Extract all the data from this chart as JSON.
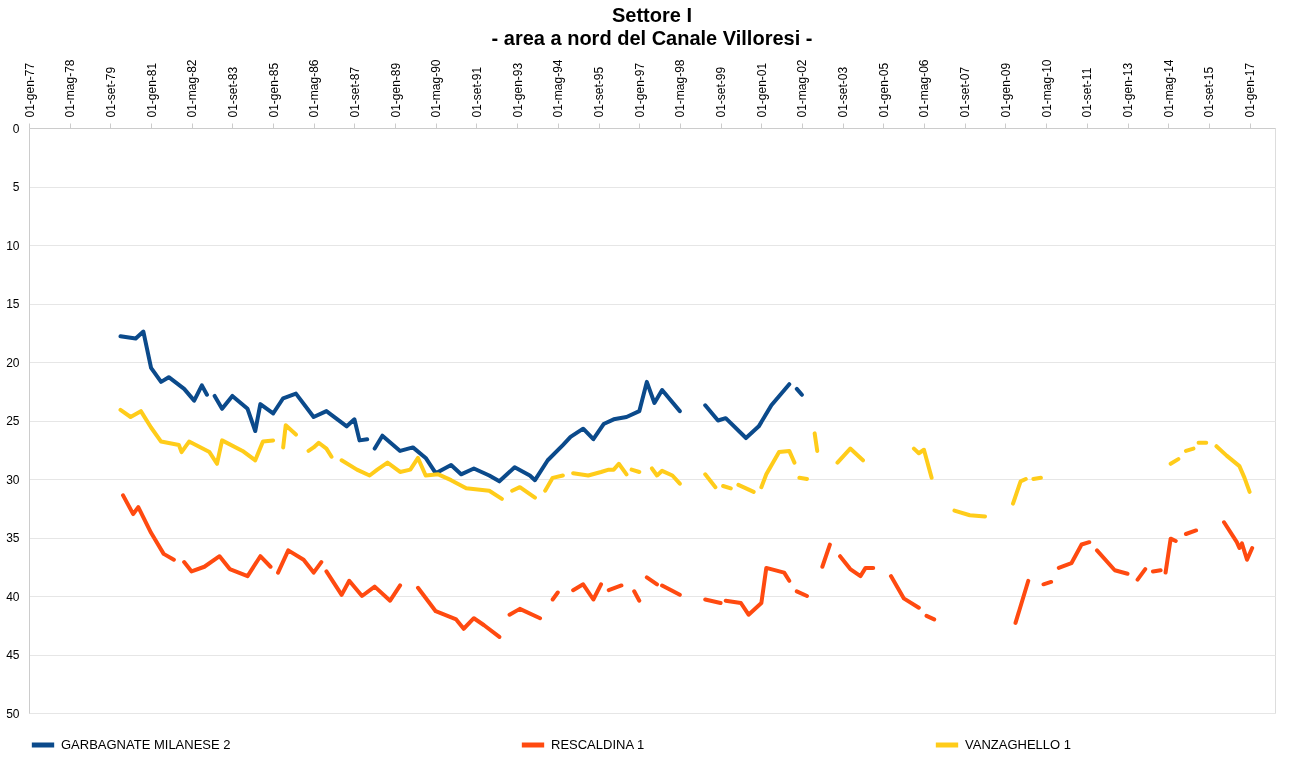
{
  "chart_data": {
    "type": "line",
    "title": "Settore I",
    "subtitle": "- area a nord del Canale Villoresi -",
    "xlim": [
      "1977-01",
      "2017-11"
    ],
    "xticks": [
      {
        "value": "1977-01",
        "label": "01-gen-77"
      },
      {
        "value": "1978-05",
        "label": "01-mag-78"
      },
      {
        "value": "1979-09",
        "label": "01-set-79"
      },
      {
        "value": "1981-01",
        "label": "01-gen-81"
      },
      {
        "value": "1982-05",
        "label": "01-mag-82"
      },
      {
        "value": "1983-09",
        "label": "01-set-83"
      },
      {
        "value": "1985-01",
        "label": "01-gen-85"
      },
      {
        "value": "1986-05",
        "label": "01-mag-86"
      },
      {
        "value": "1987-09",
        "label": "01-set-87"
      },
      {
        "value": "1989-01",
        "label": "01-gen-89"
      },
      {
        "value": "1990-05",
        "label": "01-mag-90"
      },
      {
        "value": "1991-09",
        "label": "01-set-91"
      },
      {
        "value": "1993-01",
        "label": "01-gen-93"
      },
      {
        "value": "1994-05",
        "label": "01-mag-94"
      },
      {
        "value": "1995-09",
        "label": "01-set-95"
      },
      {
        "value": "1997-01",
        "label": "01-gen-97"
      },
      {
        "value": "1998-05",
        "label": "01-mag-98"
      },
      {
        "value": "1999-09",
        "label": "01-set-99"
      },
      {
        "value": "2001-01",
        "label": "01-gen-01"
      },
      {
        "value": "2002-05",
        "label": "01-mag-02"
      },
      {
        "value": "2003-09",
        "label": "01-set-03"
      },
      {
        "value": "2005-01",
        "label": "01-gen-05"
      },
      {
        "value": "2006-05",
        "label": "01-mag-06"
      },
      {
        "value": "2007-09",
        "label": "01-set-07"
      },
      {
        "value": "2009-01",
        "label": "01-gen-09"
      },
      {
        "value": "2010-05",
        "label": "01-mag-10"
      },
      {
        "value": "2011-09",
        "label": "01-set-11"
      },
      {
        "value": "2013-01",
        "label": "01-gen-13"
      },
      {
        "value": "2014-05",
        "label": "01-mag-14"
      },
      {
        "value": "2015-09",
        "label": "01-set-15"
      },
      {
        "value": "2017-01",
        "label": "01-gen-17"
      }
    ],
    "ylim": [
      50,
      0
    ],
    "yticks": [
      0,
      5,
      10,
      15,
      20,
      25,
      30,
      35,
      40,
      45,
      50
    ],
    "grid": "y",
    "legend": "bottom",
    "line_style": "solid",
    "marker": "none",
    "series": [
      {
        "name": "GARBAGNATE MILANESE 2",
        "color": "#0b4a8b",
        "x": [
          "1980-01",
          "1980-07",
          "1980-10",
          "1981-01",
          "1981-05",
          "1981-08",
          "1982-02",
          "1982-06",
          "1982-09",
          "1982-11",
          "1982-12",
          "1983-02",
          "1983-05",
          "1983-09",
          "1984-03",
          "1984-06",
          "1984-08",
          "1985-01",
          "1985-05",
          "1985-10",
          "1986-05",
          "1986-10",
          "1987-06",
          "1987-09",
          "1987-11",
          "1988-02",
          "1988-04",
          "1988-05",
          "1988-08",
          "1989-03",
          "1989-08",
          "1990-01",
          "1990-05",
          "1990-11",
          "1991-03",
          "1991-08",
          "1992-02",
          "1992-06",
          "1992-12",
          "1993-06",
          "1993-08",
          "1994-01",
          "1994-07",
          "1994-10",
          "1995-03",
          "1995-07",
          "1995-11",
          "1996-03",
          "1996-08",
          "1997-01",
          "1997-04",
          "1997-07",
          "1997-10",
          "1998-05",
          "1998-10",
          "1999-03",
          "1999-08",
          "1999-11",
          "2000-07",
          "2000-12",
          "2001-05",
          "2001-12",
          "2002-02",
          "2002-03",
          "2002-05"
        ],
        "values": [
          17.8,
          18.0,
          17.4,
          20.5,
          21.7,
          21.3,
          22.3,
          23.3,
          22.0,
          22.8,
          null,
          22.9,
          24.0,
          22.9,
          24.0,
          25.9,
          23.6,
          24.4,
          23.1,
          22.7,
          24.7,
          24.2,
          25.5,
          24.9,
          26.7,
          26.6,
          null,
          27.4,
          26.3,
          27.6,
          27.3,
          28.2,
          29.5,
          28.8,
          29.6,
          29.1,
          29.7,
          30.2,
          29.0,
          29.7,
          30.1,
          28.4,
          27.1,
          26.4,
          25.7,
          26.6,
          25.3,
          24.9,
          24.7,
          24.2,
          21.7,
          23.5,
          22.4,
          24.2,
          null,
          23.7,
          25.0,
          24.8,
          26.5,
          25.5,
          23.7,
          21.9,
          null,
          22.3,
          22.8
        ]
      },
      {
        "name": "RESCALDINA 1",
        "color": "#ff4a10",
        "x": [
          "1980-02",
          "1980-06",
          "1980-08",
          "1981-01",
          "1981-06",
          "1981-10",
          "1981-12",
          "1982-02",
          "1982-05",
          "1982-10",
          "1983-04",
          "1983-08",
          "1984-03",
          "1984-08",
          "1984-12",
          "1985-01",
          "1985-03",
          "1985-07",
          "1986-01",
          "1986-05",
          "1986-08",
          "1986-09",
          "1986-10",
          "1987-04",
          "1987-07",
          "1987-12",
          "1988-05",
          "1988-11",
          "1989-03",
          "1989-06",
          "1989-10",
          "1990-05",
          "1991-01",
          "1991-04",
          "1991-08",
          "1991-12",
          "1992-06",
          "1992-08",
          "1992-10",
          "1993-02",
          "1993-10",
          "1994-01",
          "1994-03",
          "1994-05",
          "1994-08",
          "1994-11",
          "1995-03",
          "1995-07",
          "1995-10",
          "1995-12",
          "1996-01",
          "1996-06",
          "1996-08",
          "1996-11",
          "1997-01",
          "1997-02",
          "1997-04",
          "1997-08",
          "1997-09",
          "1997-10",
          "1998-05",
          "1998-10",
          "1999-03",
          "1999-09",
          "1999-10",
          "1999-11",
          "2000-05",
          "2000-08",
          "2001-01",
          "2001-03",
          "2001-10",
          "2001-12",
          "2002-02",
          "2002-03",
          "2002-07",
          "2002-08",
          "2003-01",
          "2003-04",
          "2003-06",
          "2003-08",
          "2003-12",
          "2004-04",
          "2004-06",
          "2004-09",
          "2005-01",
          "2005-04",
          "2005-09",
          "2006-03",
          "2006-04",
          "2006-06",
          "2006-09",
          "2007-12",
          "2009-05",
          "2009-10",
          "2010-01",
          "2010-04",
          "2010-07",
          "2010-08",
          "2010-10",
          "2011-03",
          "2011-07",
          "2011-10",
          "2011-11",
          "2012-01",
          "2012-08",
          "2013-01",
          "2013-03",
          "2013-05",
          "2013-08",
          "2013-09",
          "2013-11",
          "2014-02",
          "2014-03",
          "2014-04",
          "2014-06",
          "2014-08",
          "2014-10",
          "2014-12",
          "2015-04",
          "2015-08",
          "2016-03",
          "2016-08",
          "2016-09",
          "2016-10",
          "2016-12",
          "2017-02"
        ],
        "values": [
          31.4,
          33.0,
          32.4,
          34.6,
          36.4,
          36.9,
          null,
          37.1,
          37.9,
          37.5,
          36.6,
          37.7,
          38.3,
          36.6,
          37.5,
          null,
          38.0,
          36.1,
          36.9,
          38.0,
          37.1,
          null,
          37.9,
          39.9,
          38.7,
          40.0,
          39.2,
          40.4,
          39.1,
          null,
          39.3,
          41.3,
          42.0,
          42.8,
          41.9,
          42.5,
          43.5,
          null,
          41.6,
          41.1,
          41.9,
          null,
          40.3,
          39.7,
          null,
          39.5,
          39.0,
          40.3,
          39.0,
          null,
          39.5,
          39.1,
          null,
          39.6,
          40.4,
          null,
          38.4,
          39.0,
          null,
          39.1,
          39.9,
          null,
          40.3,
          40.6,
          null,
          40.4,
          40.6,
          41.6,
          40.6,
          37.6,
          38.0,
          38.7,
          null,
          39.6,
          40.0,
          null,
          37.5,
          35.6,
          null,
          36.6,
          37.7,
          38.3,
          37.6,
          37.6,
          null,
          38.3,
          40.2,
          41.0,
          null,
          41.7,
          42.0,
          null,
          42.3,
          38.7,
          null,
          39.0,
          38.8,
          null,
          37.6,
          37.2,
          35.6,
          35.4,
          null,
          36.1,
          37.8,
          38.1,
          null,
          38.6,
          37.7,
          null,
          37.9,
          37.8,
          null,
          38.0,
          35.1,
          35.3,
          null,
          34.7,
          34.4,
          null,
          33.7,
          35.4,
          35.9,
          35.5,
          36.9,
          35.9
        ]
      },
      {
        "name": "VANZAGHELLO 1",
        "color": "#ffcc1a",
        "x": [
          "1980-01",
          "1980-05",
          "1980-09",
          "1981-01",
          "1981-05",
          "1981-12",
          "1982-01",
          "1982-04",
          "1982-12",
          "1983-03",
          "1983-05",
          "1984-01",
          "1984-06",
          "1984-09",
          "1985-01",
          "1985-03",
          "1985-05",
          "1985-06",
          "1985-10",
          "1986-01",
          "1986-03",
          "1986-05",
          "1986-07",
          "1986-10",
          "1986-12",
          "1987-02",
          "1987-04",
          "1987-10",
          "1988-03",
          "1988-06",
          "1988-10",
          "1989-03",
          "1989-07",
          "1989-10",
          "1990-01",
          "1990-06",
          "1990-11",
          "1991-05",
          "1992-02",
          "1992-07",
          "1992-09",
          "1992-11",
          "1993-02",
          "1993-08",
          "1993-10",
          "1993-12",
          "1994-03",
          "1994-07",
          "1994-09",
          "1994-11",
          "1995-05",
          "1995-10",
          "1996-01",
          "1996-03",
          "1996-05",
          "1996-08",
          "1996-09",
          "1996-10",
          "1997-01",
          "1997-02",
          "1997-06",
          "1997-08",
          "1997-10",
          "1998-02",
          "1998-05",
          "1998-10",
          "1999-03",
          "1999-07",
          "1999-09",
          "1999-10",
          "2000-01",
          "2000-02",
          "2000-04",
          "2000-10",
          "2000-11",
          "2001-01",
          "2001-03",
          "2001-08",
          "2001-12",
          "2002-02",
          "2002-03",
          "2002-04",
          "2002-07",
          "2002-08",
          "2002-10",
          "2002-11",
          "2003-02",
          "2003-07",
          "2003-12",
          "2004-05",
          "2005-01",
          "2006-01",
          "2006-03",
          "2006-05",
          "2006-08",
          "2007-01",
          "2007-05",
          "2007-11",
          "2008-05",
          "2008-10",
          "2009-04",
          "2009-07",
          "2009-09",
          "2009-11",
          "2009-12",
          "2010-03",
          "2012-01",
          "2014-06",
          "2014-09",
          "2014-10",
          "2014-12",
          "2015-03",
          "2015-04",
          "2015-05",
          "2015-08",
          "2015-10",
          "2015-12",
          "2016-04",
          "2016-09",
          "2016-11",
          "2017-01"
        ],
        "values": [
          24.1,
          24.7,
          24.2,
          25.6,
          26.8,
          27.1,
          27.7,
          26.8,
          27.7,
          28.7,
          26.7,
          27.6,
          28.4,
          26.8,
          26.7,
          null,
          27.3,
          25.4,
          26.2,
          null,
          27.6,
          27.3,
          26.9,
          27.4,
          28.1,
          null,
          28.4,
          29.2,
          29.7,
          29.2,
          28.6,
          29.4,
          29.2,
          28.2,
          29.7,
          29.6,
          30.1,
          30.8,
          31.0,
          31.7,
          null,
          31.0,
          30.7,
          31.6,
          null,
          31.0,
          29.9,
          29.7,
          null,
          29.5,
          29.7,
          29.4,
          29.2,
          29.2,
          28.7,
          29.6,
          null,
          29.2,
          29.4,
          null,
          29.1,
          29.7,
          29.3,
          29.7,
          30.4,
          null,
          29.6,
          30.7,
          null,
          30.6,
          30.8,
          null,
          30.5,
          31.1,
          null,
          30.7,
          29.6,
          27.7,
          27.6,
          28.6,
          null,
          29.9,
          30.0,
          null,
          26.1,
          27.6,
          null,
          28.6,
          27.4,
          28.4,
          null,
          27.4,
          27.8,
          27.5,
          29.9,
          null,
          32.7,
          33.1,
          33.2,
          null,
          32.1,
          30.2,
          30.0,
          null,
          30.0,
          29.9,
          null,
          28.7,
          28.3,
          null,
          27.6,
          27.4,
          null,
          26.9,
          26.9,
          null,
          27.2,
          28.0,
          28.9,
          29.9,
          31.1
        ]
      }
    ]
  }
}
